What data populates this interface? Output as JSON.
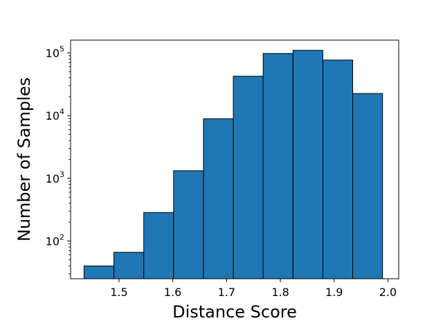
{
  "chart_data": {
    "type": "bar",
    "subtype": "histogram",
    "title": "",
    "xlabel": "Distance Score",
    "ylabel": "Number of Samples",
    "yscale": "log",
    "grid": false,
    "legend": "none",
    "bar_color": "#1f77b4",
    "edge_color": "#000000",
    "xlim": [
      1.41,
      2.02
    ],
    "ylim": [
      25,
      160000
    ],
    "bin_edges": [
      1.435,
      1.4905,
      1.546,
      1.6015,
      1.657,
      1.7125,
      1.768,
      1.8235,
      1.879,
      1.9345,
      1.99
    ],
    "values": [
      40,
      66,
      285,
      1320,
      8900,
      42500,
      98000,
      110000,
      77000,
      22500
    ],
    "x_ticks": [
      "1.5",
      "1.6",
      "1.7",
      "1.8",
      "1.9",
      "2.0"
    ],
    "y_ticks": [
      {
        "base": "10",
        "exp": "2"
      },
      {
        "base": "10",
        "exp": "3"
      },
      {
        "base": "10",
        "exp": "4"
      },
      {
        "base": "10",
        "exp": "5"
      }
    ]
  }
}
